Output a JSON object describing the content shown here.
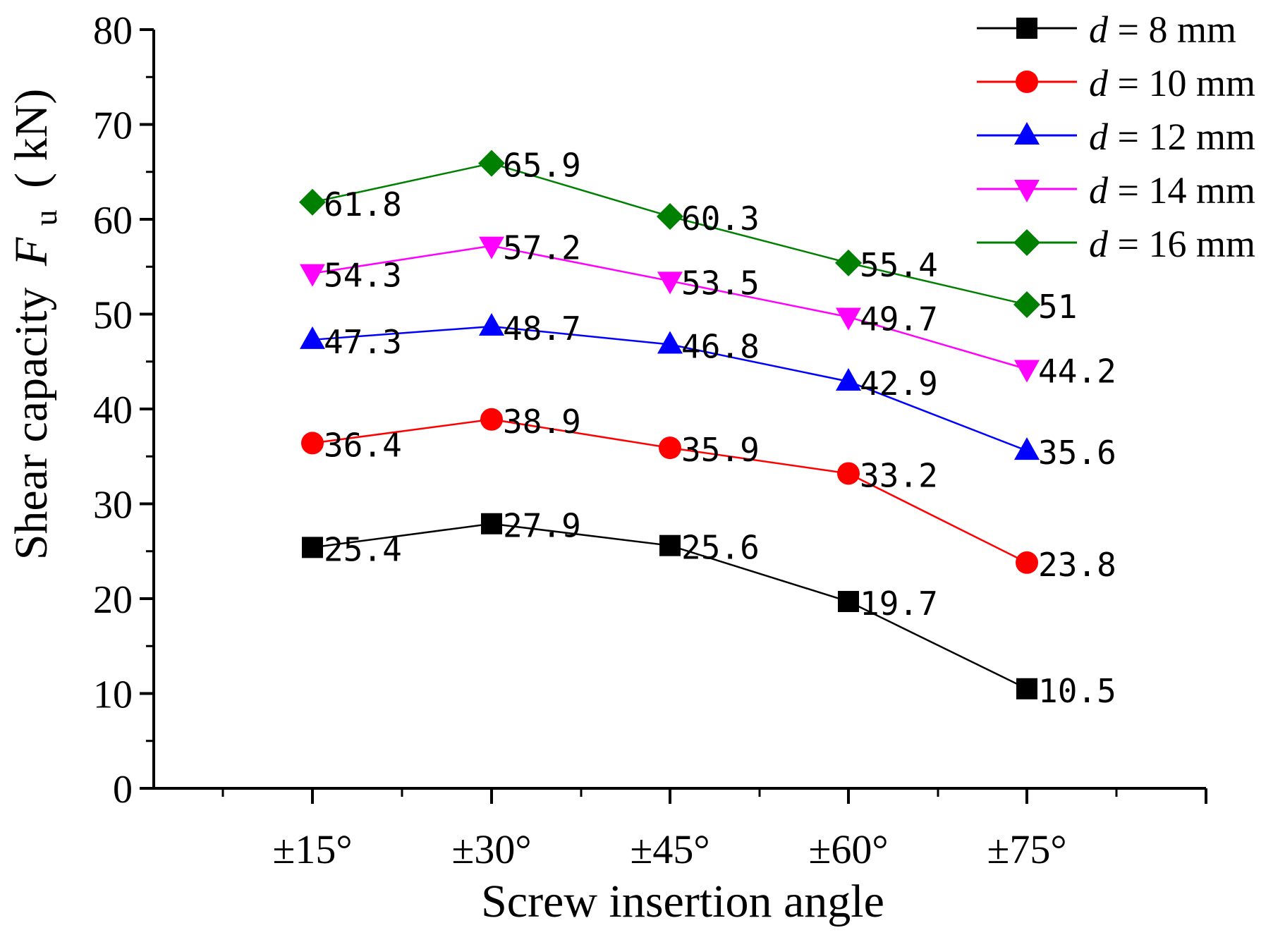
{
  "chart_data": {
    "type": "line",
    "title": "",
    "xlabel": "Screw insertion angle",
    "ylabel_prefix": "Shear capacity",
    "ylabel_var": "F",
    "ylabel_sub": "u",
    "ylabel_unit": "( kN)",
    "categories": [
      "±15°",
      "±30°",
      "±45°",
      "±60°",
      "±75°"
    ],
    "ylim": [
      0,
      80
    ],
    "yticks": [
      0,
      10,
      20,
      30,
      40,
      50,
      60,
      70,
      80
    ],
    "ytick_labels": [
      "0",
      "10",
      "20",
      "30",
      "40",
      "50",
      "60",
      "70",
      "80"
    ],
    "legend_position": "top-right",
    "series": [
      {
        "name": "d = 8 mm",
        "legend_var": "d",
        "legend_rest": " = 8 mm",
        "color": "#000000",
        "marker": "square",
        "values": [
          25.4,
          27.9,
          25.6,
          19.7,
          10.5
        ],
        "labels": [
          "25.4",
          "27.9",
          "25.6",
          "19.7",
          "10.5"
        ]
      },
      {
        "name": "d = 10 mm",
        "legend_var": "d",
        "legend_rest": " = 10 mm",
        "color": "#ff0000",
        "marker": "circle",
        "values": [
          36.4,
          38.9,
          35.9,
          33.2,
          23.8
        ],
        "labels": [
          "36.4",
          "38.9",
          "35.9",
          "33.2",
          "23.8"
        ]
      },
      {
        "name": "d = 12 mm",
        "legend_var": "d",
        "legend_rest": " = 12 mm",
        "color": "#0000ff",
        "marker": "triangle-up",
        "values": [
          47.3,
          48.7,
          46.8,
          42.9,
          35.6
        ],
        "labels": [
          "47.3",
          "48.7",
          "46.8",
          "42.9",
          "35.6"
        ]
      },
      {
        "name": "d = 14 mm",
        "legend_var": "d",
        "legend_rest": " = 14 mm",
        "color": "#ff00ff",
        "marker": "triangle-down",
        "values": [
          54.3,
          57.2,
          53.5,
          49.7,
          44.2
        ],
        "labels": [
          "54.3",
          "57.2",
          "53.5",
          "49.7",
          "44.2"
        ]
      },
      {
        "name": "d = 16 mm",
        "legend_var": "d",
        "legend_rest": " = 16 mm",
        "color": "#008000",
        "marker": "diamond",
        "values": [
          61.8,
          65.9,
          60.3,
          55.4,
          51.0
        ],
        "labels": [
          "61.8",
          "65.9",
          "60.3",
          "55.4",
          "51"
        ]
      }
    ]
  }
}
